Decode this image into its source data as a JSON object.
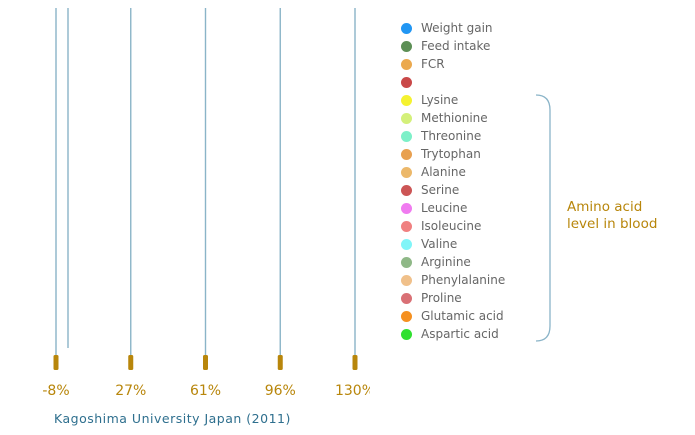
{
  "chart_data": {
    "type": "line",
    "x_ticks": [
      "-8%",
      "27%",
      "61%",
      "96%",
      "130%"
    ],
    "legend": [
      {
        "name": "Weight gain",
        "color": "#2196f3"
      },
      {
        "name": "Feed intake",
        "color": "#5c8f55"
      },
      {
        "name": "FCR",
        "color": "#eba94e"
      },
      {
        "name": "",
        "color": "#c94848"
      },
      {
        "name": "Lysine",
        "color": "#f5f230"
      },
      {
        "name": "Methionine",
        "color": "#d4f07a"
      },
      {
        "name": "Threonine",
        "color": "#7df0c8"
      },
      {
        "name": "Trytophan",
        "color": "#e8a050"
      },
      {
        "name": "Alanine",
        "color": "#ecb86a"
      },
      {
        "name": "Serine",
        "color": "#cc5555"
      },
      {
        "name": "Leucine",
        "color": "#f07bf0"
      },
      {
        "name": "Isoleucine",
        "color": "#f08080"
      },
      {
        "name": "Valine",
        "color": "#80f5f8"
      },
      {
        "name": "Arginine",
        "color": "#8fb887"
      },
      {
        "name": "Phenylalanine",
        "color": "#f0c08a"
      },
      {
        "name": "Proline",
        "color": "#d97075"
      },
      {
        "name": "Glutamic acid",
        "color": "#f59020"
      },
      {
        "name": "Aspartic acid",
        "color": "#30e030"
      }
    ],
    "bracket_label_line1": "Amino acid",
    "bracket_label_line2": "level in blood",
    "source": "Kagoshima University Japan (2011)",
    "colors": {
      "axis_line": "#8ab4c8",
      "tick_marker": "#b8860b",
      "tick_text": "#b8860b",
      "source_text": "#2e6f8e",
      "bracket": "#8ab4c8"
    }
  }
}
